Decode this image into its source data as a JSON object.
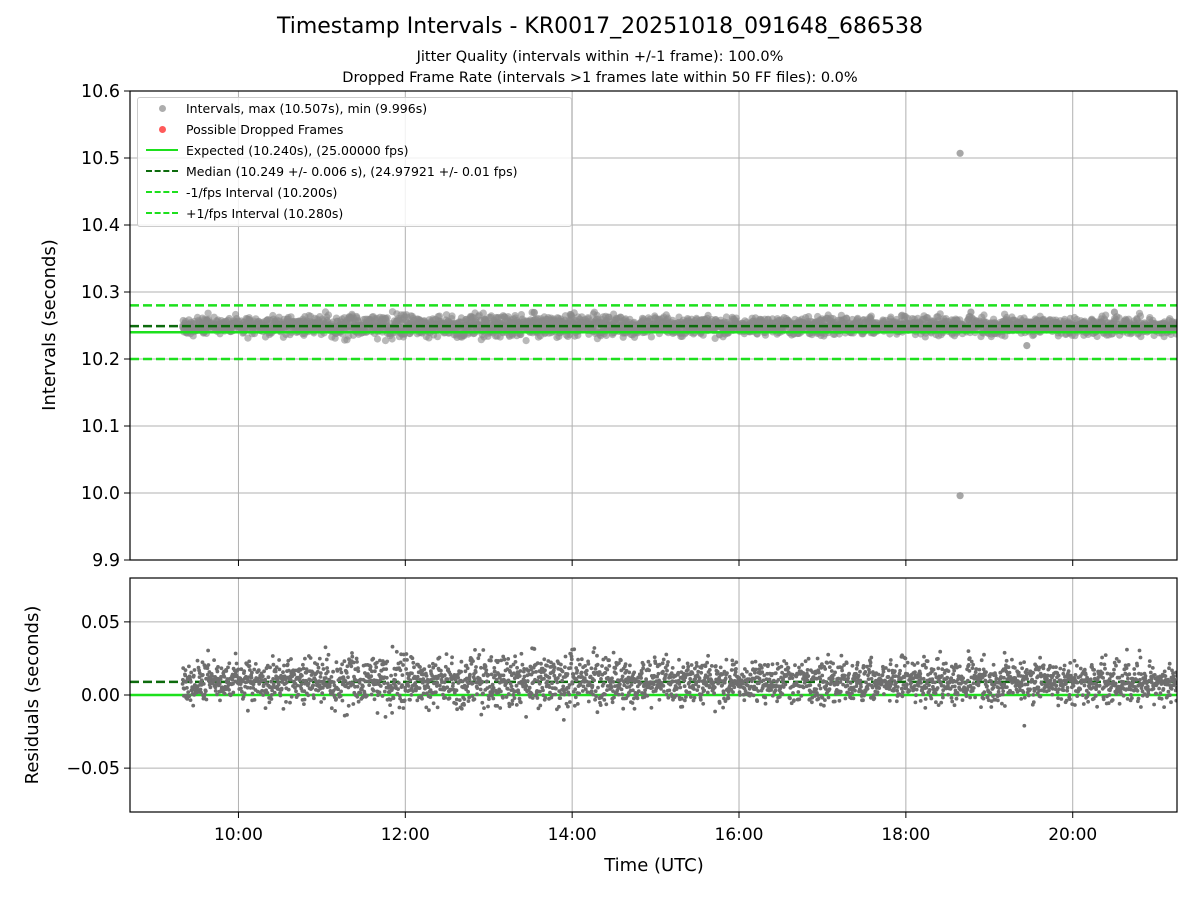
{
  "title": "Timestamp Intervals - KR0017_20251018_091648_686538",
  "subtitle_lines": [
    "Jitter Quality (intervals within +/-1 frame): 100.0%",
    "Dropped Frame Rate (intervals >1 frames late within 50 FF files): 0.0%"
  ],
  "colors": {
    "interval_points": "#8a8a8a",
    "dropped_points": "#ff5a5a",
    "expected": "#1de01d",
    "median": "#0d6b0d",
    "fps_band": "#1de01d",
    "residual_points": "#6e6e6e",
    "grid": "#b0b0b0"
  },
  "legend": {
    "placement": "upper-left",
    "entries": [
      {
        "label": "Intervals, max (10.507s), min (9.996s)",
        "kind": "marker",
        "color_key": "interval_points"
      },
      {
        "label": "Possible Dropped Frames",
        "kind": "marker",
        "color_key": "dropped_points"
      },
      {
        "label": "Expected (10.240s), (25.00000 fps)",
        "kind": "solid",
        "color_key": "expected"
      },
      {
        "label": "Median (10.249 +/- 0.006 s), (24.97921 +/- 0.01 fps)",
        "kind": "dashed",
        "color_key": "median"
      },
      {
        "label": "-1/fps Interval (10.200s)",
        "kind": "dashed",
        "color_key": "fps_band"
      },
      {
        "label": "+1/fps Interval (10.280s)",
        "kind": "dashed",
        "color_key": "fps_band"
      }
    ]
  },
  "chart_data": [
    {
      "type": "scatter",
      "ylabel": "Intervals (seconds)",
      "ylim": [
        9.9,
        10.6
      ],
      "yticks": [
        9.9,
        10.0,
        10.1,
        10.2,
        10.3,
        10.4,
        10.5,
        10.6
      ],
      "ytick_labels": [
        "9.9",
        "10.0",
        "10.1",
        "10.2",
        "10.3",
        "10.4",
        "10.5",
        "10.6"
      ],
      "grid": true,
      "xrange_hours": [
        8.7,
        21.25
      ],
      "data_span_hours": [
        9.33,
        21.25
      ],
      "expected": 10.24,
      "median": 10.249,
      "median_std": 0.006,
      "minus_fps": 10.2,
      "plus_fps": 10.28,
      "point_spread_std": 0.006,
      "outliers": [
        {
          "x": 18.65,
          "y": 10.507
        },
        {
          "x": 18.65,
          "y": 9.996
        },
        {
          "x": 18.78,
          "y": 10.27
        },
        {
          "x": 20.5,
          "y": 10.27
        },
        {
          "x": 19.45,
          "y": 10.22
        }
      ],
      "dropped_frames": []
    },
    {
      "type": "scatter",
      "xlabel": "Time (UTC)",
      "ylabel": "Residuals (seconds)",
      "ylim": [
        -0.08,
        0.08
      ],
      "yticks": [
        -0.05,
        0.0,
        0.05
      ],
      "ytick_labels": [
        "−0.05",
        "0.00",
        "0.05"
      ],
      "xticks_hours": [
        10,
        12,
        14,
        16,
        18,
        20
      ],
      "xtick_labels": [
        "10:00",
        "12:00",
        "14:00",
        "16:00",
        "18:00",
        "20:00"
      ],
      "grid": true,
      "expected_residual": 0.0,
      "median_residual": 0.009,
      "point_spread_std": 0.007,
      "notable_points": [
        {
          "x": 14.0,
          "y": 0.031
        },
        {
          "x": 18.75,
          "y": 0.03
        },
        {
          "x": 20.65,
          "y": 0.031
        },
        {
          "x": 19.42,
          "y": -0.021
        },
        {
          "x": 13.9,
          "y": -0.017
        }
      ]
    }
  ]
}
